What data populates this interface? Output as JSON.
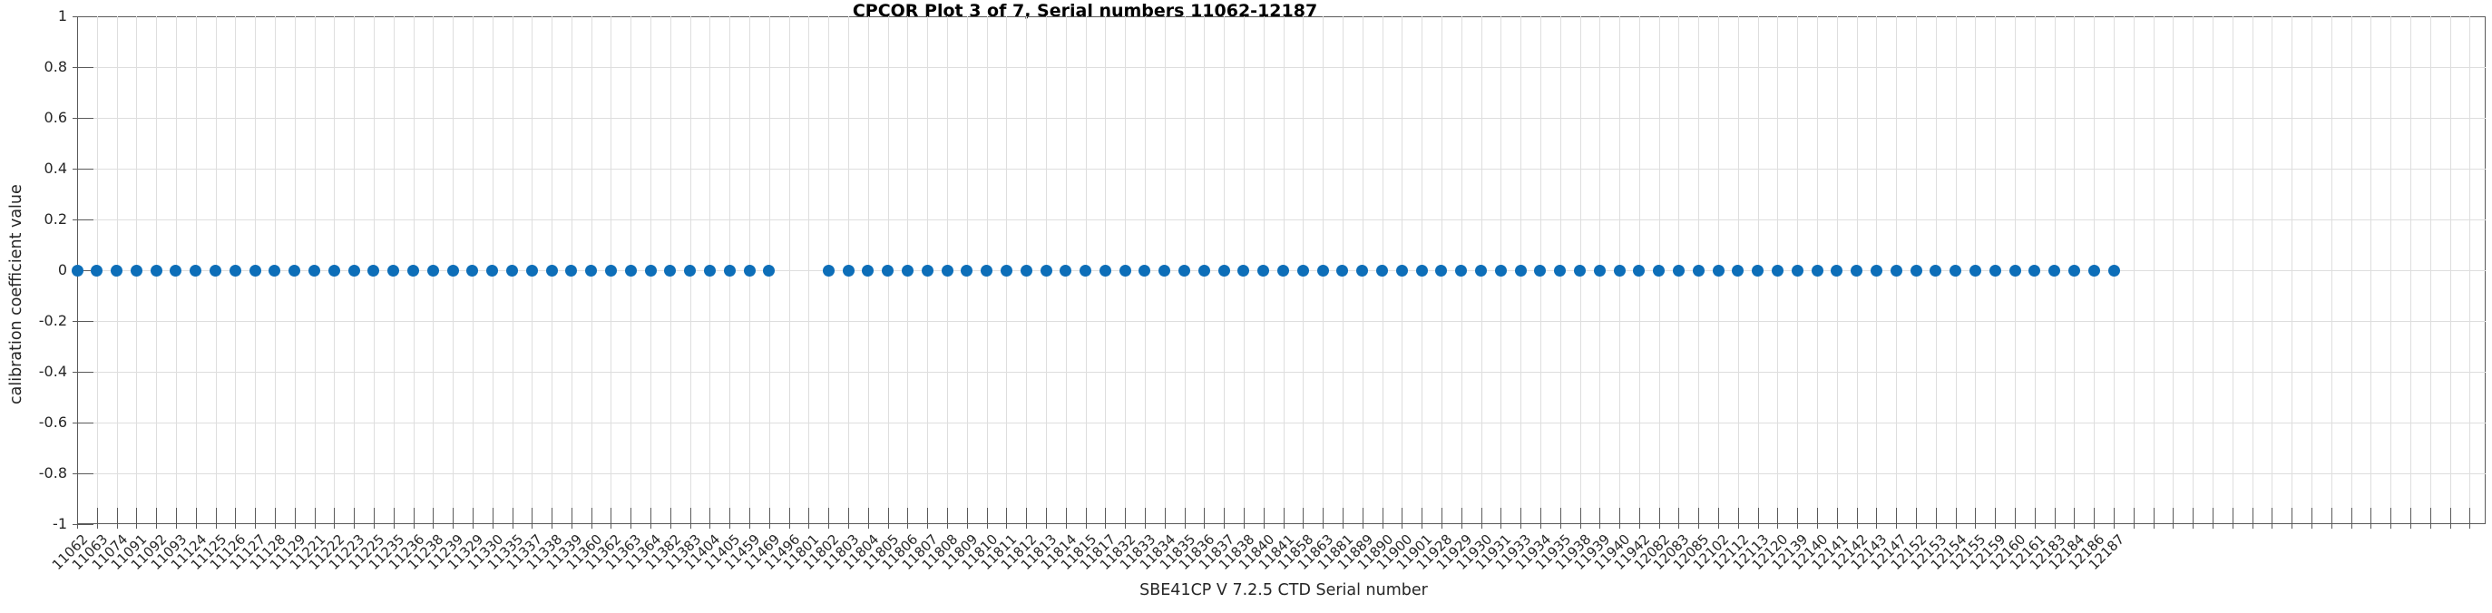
{
  "chart_data": {
    "type": "scatter",
    "title": "CPCOR Plot 3 of 7, Serial numbers 11062-12187",
    "xlabel": "SBE41CP V 7.2.5 CTD Serial number",
    "ylabel": "calibration coefficient value",
    "ylim": [
      -1,
      1
    ],
    "ytick_labels": [
      "1",
      "0.8",
      "0.6",
      "0.4",
      "0.2",
      "0",
      "-0.2",
      "-0.4",
      "-0.6",
      "-0.8",
      "-1"
    ],
    "ytick_values": [
      1,
      0.8,
      0.6,
      0.4,
      0.2,
      0,
      -0.2,
      -0.4,
      -0.6,
      -0.8,
      -1
    ],
    "grid": true,
    "legend": "none",
    "marker": "filled-circle",
    "marker_color": "#0d6eb8",
    "categories": [
      "11062",
      "11063",
      "11074",
      "11091",
      "11092",
      "11093",
      "11124",
      "11125",
      "11126",
      "11127",
      "11128",
      "11129",
      "11221",
      "11222",
      "11223",
      "11225",
      "11235",
      "11236",
      "11238",
      "11239",
      "11329",
      "11330",
      "11335",
      "11337",
      "11338",
      "11339",
      "11360",
      "11362",
      "11363",
      "11364",
      "11382",
      "11383",
      "11404",
      "11405",
      "11459",
      "11469",
      "11496",
      "11801",
      "11802",
      "11803",
      "11804",
      "11805",
      "11806",
      "11807",
      "11808",
      "11809",
      "11810",
      "11811",
      "11812",
      "11813",
      "11814",
      "11815",
      "11817",
      "11832",
      "11833",
      "11834",
      "11835",
      "11836",
      "11837",
      "11838",
      "11840",
      "11841",
      "11858",
      "11863",
      "11881",
      "11889",
      "11890",
      "11900",
      "11901",
      "11928",
      "11929",
      "11930",
      "11931",
      "11933",
      "11934",
      "11935",
      "11938",
      "11939",
      "11940",
      "11942",
      "12082",
      "12083",
      "12085",
      "12102",
      "12112",
      "12113",
      "12120",
      "12139",
      "12140",
      "12141",
      "12142",
      "12143",
      "12147",
      "12152",
      "12153",
      "12154",
      "12155",
      "12159",
      "12160",
      "12161",
      "12183",
      "12184",
      "12186",
      "12187"
    ],
    "values": [
      0,
      0,
      0,
      0,
      0,
      0,
      0,
      0,
      0,
      0,
      0,
      0,
      0,
      0,
      0,
      0,
      0,
      0,
      0,
      0,
      0,
      0,
      0,
      0,
      0,
      0,
      0,
      0,
      0,
      0,
      0,
      0,
      0,
      0,
      0,
      0,
      null,
      null,
      0,
      0,
      0,
      0,
      0,
      0,
      0,
      0,
      0,
      0,
      0,
      0,
      0,
      0,
      0,
      0,
      0,
      0,
      0,
      0,
      0,
      0,
      0,
      0,
      0,
      0,
      0,
      0,
      0,
      0,
      0,
      0,
      0,
      0,
      0,
      0,
      0,
      0,
      0,
      0,
      0,
      0,
      0,
      0,
      0,
      0,
      0,
      0,
      0,
      0,
      0,
      0,
      0,
      0,
      0,
      0,
      0,
      0,
      0,
      0,
      0,
      0,
      0,
      0,
      0,
      0
    ]
  },
  "colors": {
    "marker": "#0d6eb8",
    "grid": "#dedede",
    "axis": "#5a5a5a",
    "text": "#262626",
    "title_text": "#000000"
  }
}
